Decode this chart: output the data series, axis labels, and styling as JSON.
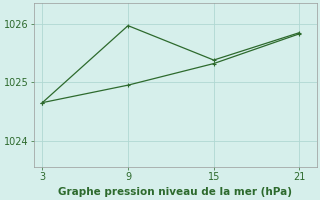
{
  "line1_x": [
    3,
    9,
    15,
    21
  ],
  "line1_y": [
    1024.65,
    1025.97,
    1025.38,
    1025.85
  ],
  "line2_x": [
    3,
    9,
    15,
    21
  ],
  "line2_y": [
    1024.65,
    1024.95,
    1025.32,
    1025.83
  ],
  "line_color": "#2d6a2d",
  "background_color": "#d6efeb",
  "grid_color": "#b0d8d2",
  "xlabel": "Graphe pression niveau de la mer (hPa)",
  "xlabel_color": "#2d6a2d",
  "xlabel_fontsize": 7.5,
  "xticks": [
    3,
    9,
    15,
    21
  ],
  "yticks": [
    1024,
    1025,
    1026
  ],
  "xlim": [
    2.4,
    22.2
  ],
  "ylim": [
    1023.55,
    1026.35
  ],
  "tick_color": "#2d6a2d",
  "tick_fontsize": 7.0
}
